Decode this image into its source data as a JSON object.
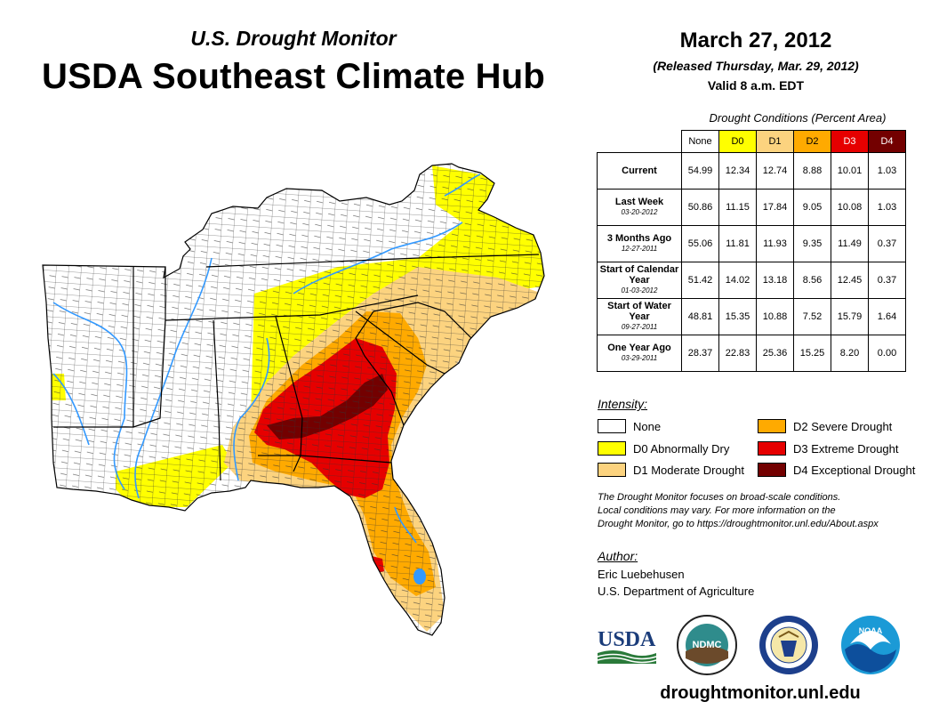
{
  "header": {
    "subtitle": "U.S. Drought Monitor",
    "title": "USDA Southeast Climate Hub",
    "date": "March 27, 2012",
    "released": "(Released Thursday, Mar. 29, 2012)",
    "valid": "Valid 8 a.m. EDT"
  },
  "table": {
    "caption": "Drought Conditions (Percent Area)",
    "columns": [
      {
        "label": "None",
        "color": "#ffffff"
      },
      {
        "label": "D0",
        "color": "#ffff00"
      },
      {
        "label": "D1",
        "color": "#fcd37f"
      },
      {
        "label": "D2",
        "color": "#ffaa00"
      },
      {
        "label": "D3",
        "color": "#e60000"
      },
      {
        "label": "D4",
        "color": "#730000"
      }
    ],
    "rows": [
      {
        "label": "Current",
        "date": "",
        "values": [
          "54.99",
          "12.34",
          "12.74",
          "8.88",
          "10.01",
          "1.03"
        ]
      },
      {
        "label": "Last Week",
        "date": "03-20-2012",
        "values": [
          "50.86",
          "11.15",
          "17.84",
          "9.05",
          "10.08",
          "1.03"
        ]
      },
      {
        "label": "3 Months Ago",
        "date": "12-27-2011",
        "values": [
          "55.06",
          "11.81",
          "11.93",
          "9.35",
          "11.49",
          "0.37"
        ]
      },
      {
        "label": "Start of Calendar Year",
        "date": "01-03-2012",
        "values": [
          "51.42",
          "14.02",
          "13.18",
          "8.56",
          "12.45",
          "0.37"
        ]
      },
      {
        "label": "Start of Water Year",
        "date": "09-27-2011",
        "values": [
          "48.81",
          "15.35",
          "10.88",
          "7.52",
          "15.79",
          "1.64"
        ]
      },
      {
        "label": "One Year Ago",
        "date": "03-29-2011",
        "values": [
          "28.37",
          "22.83",
          "25.36",
          "15.25",
          "8.20",
          "0.00"
        ]
      }
    ]
  },
  "legend": {
    "title": "Intensity:",
    "items": [
      {
        "label": "None",
        "color": "#ffffff"
      },
      {
        "label": "D0 Abnormally Dry",
        "color": "#ffff00"
      },
      {
        "label": "D1 Moderate Drought",
        "color": "#fcd37f"
      },
      {
        "label": "D2 Severe Drought",
        "color": "#ffaa00"
      },
      {
        "label": "D3 Extreme Drought",
        "color": "#e60000"
      },
      {
        "label": "D4 Exceptional Drought",
        "color": "#730000"
      }
    ]
  },
  "note": {
    "line1": "The Drought Monitor focuses on broad-scale conditions.",
    "line2": "Local conditions may vary. For more information on the",
    "line3": "Drought Monitor, go to https://droughtmonitor.unl.edu/About.aspx"
  },
  "author": {
    "title": "Author:",
    "name": "Eric Luebehusen",
    "org": "U.S. Department of Agriculture"
  },
  "logos": {
    "usda": "USDA",
    "ndmc": "NDMC",
    "noaa": "NOAA"
  },
  "footer": {
    "url": "droughtmonitor.unl.edu"
  }
}
